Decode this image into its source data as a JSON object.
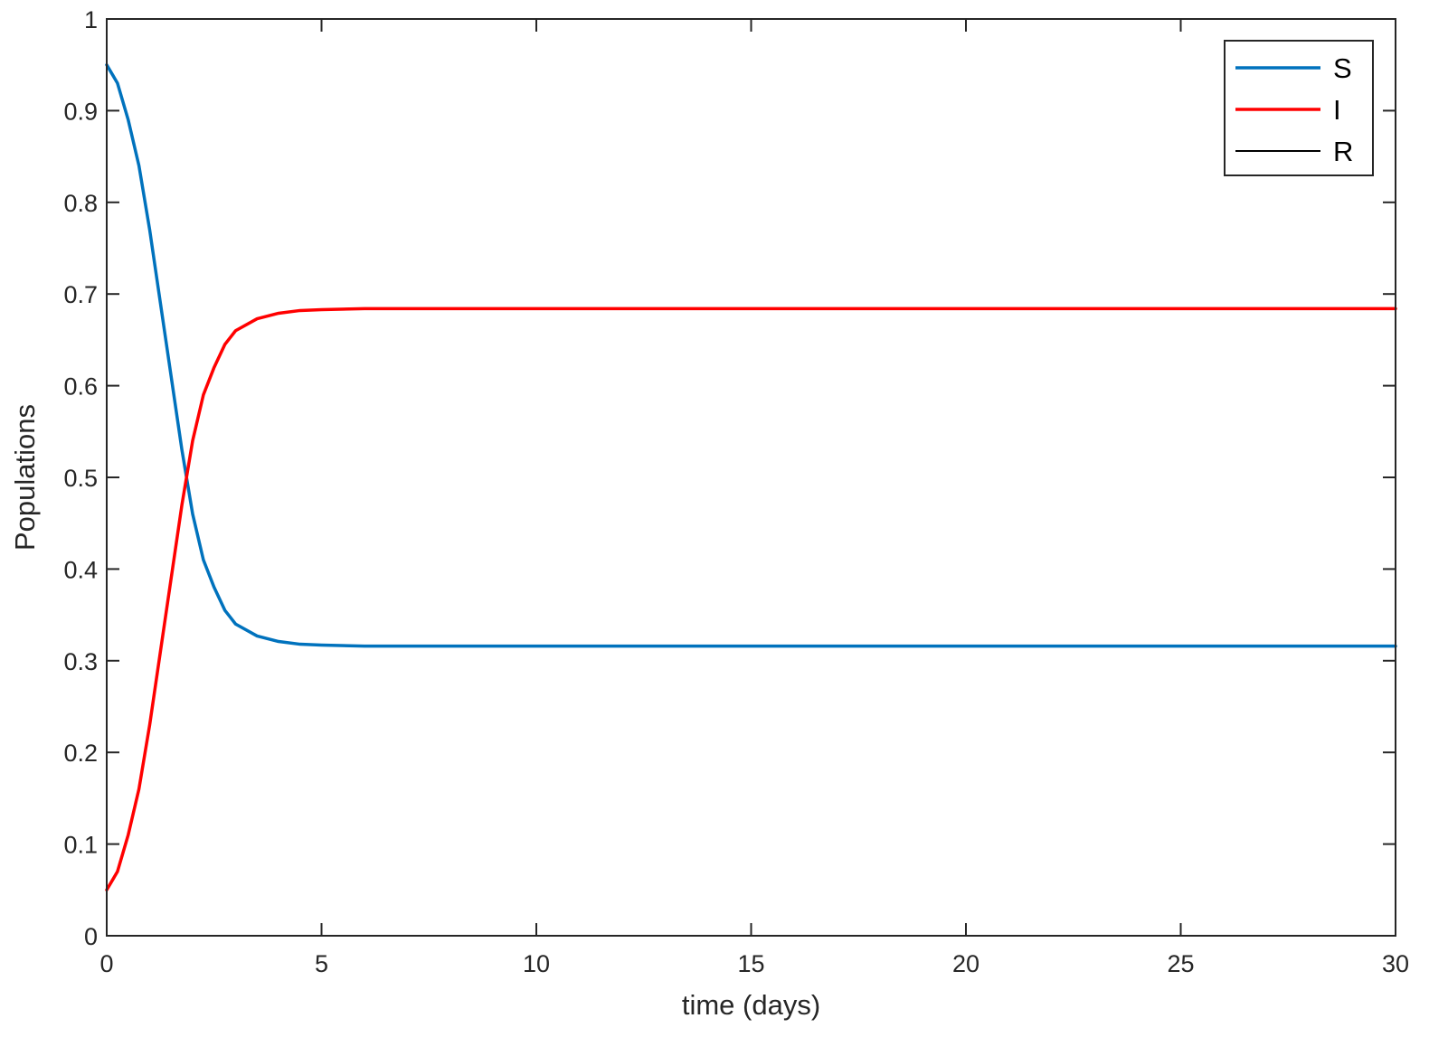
{
  "chart_data": {
    "type": "line",
    "title": "",
    "xlabel": "time (days)",
    "ylabel": "Populations",
    "xlim": [
      0,
      30
    ],
    "ylim": [
      0,
      1
    ],
    "xticks": [
      0,
      5,
      10,
      15,
      20,
      25,
      30
    ],
    "yticks": [
      0,
      0.1,
      0.2,
      0.3,
      0.4,
      0.5,
      0.6,
      0.7,
      0.8,
      0.9,
      1
    ],
    "xtick_labels": [
      "0",
      "5",
      "10",
      "15",
      "20",
      "25",
      "30"
    ],
    "ytick_labels": [
      "0",
      "0.1",
      "0.2",
      "0.3",
      "0.4",
      "0.5",
      "0.6",
      "0.7",
      "0.8",
      "0.9",
      "1"
    ],
    "grid": false,
    "legend": {
      "position": "top-right"
    },
    "series": [
      {
        "name": "S",
        "color": "#0072BD",
        "x": [
          0,
          0.25,
          0.5,
          0.75,
          1.0,
          1.25,
          1.5,
          1.75,
          2.0,
          2.25,
          2.5,
          2.75,
          3.0,
          3.5,
          4.0,
          4.5,
          5.0,
          6.0,
          7.0,
          10,
          15,
          20,
          25,
          30
        ],
        "y": [
          0.95,
          0.93,
          0.89,
          0.84,
          0.77,
          0.69,
          0.61,
          0.53,
          0.46,
          0.41,
          0.38,
          0.355,
          0.34,
          0.327,
          0.321,
          0.318,
          0.317,
          0.316,
          0.316,
          0.316,
          0.316,
          0.316,
          0.316,
          0.316
        ]
      },
      {
        "name": "I",
        "color": "#FF0000",
        "x": [
          0,
          0.25,
          0.5,
          0.75,
          1.0,
          1.25,
          1.5,
          1.75,
          2.0,
          2.25,
          2.5,
          2.75,
          3.0,
          3.5,
          4.0,
          4.5,
          5.0,
          6.0,
          7.0,
          10,
          15,
          20,
          25,
          30
        ],
        "y": [
          0.05,
          0.07,
          0.11,
          0.16,
          0.23,
          0.31,
          0.39,
          0.47,
          0.54,
          0.59,
          0.62,
          0.645,
          0.66,
          0.673,
          0.679,
          0.682,
          0.683,
          0.684,
          0.684,
          0.684,
          0.684,
          0.684,
          0.684,
          0.684
        ]
      },
      {
        "name": "R",
        "color": "#000000",
        "x": [
          0,
          30
        ],
        "y": [
          0,
          0
        ]
      }
    ]
  }
}
